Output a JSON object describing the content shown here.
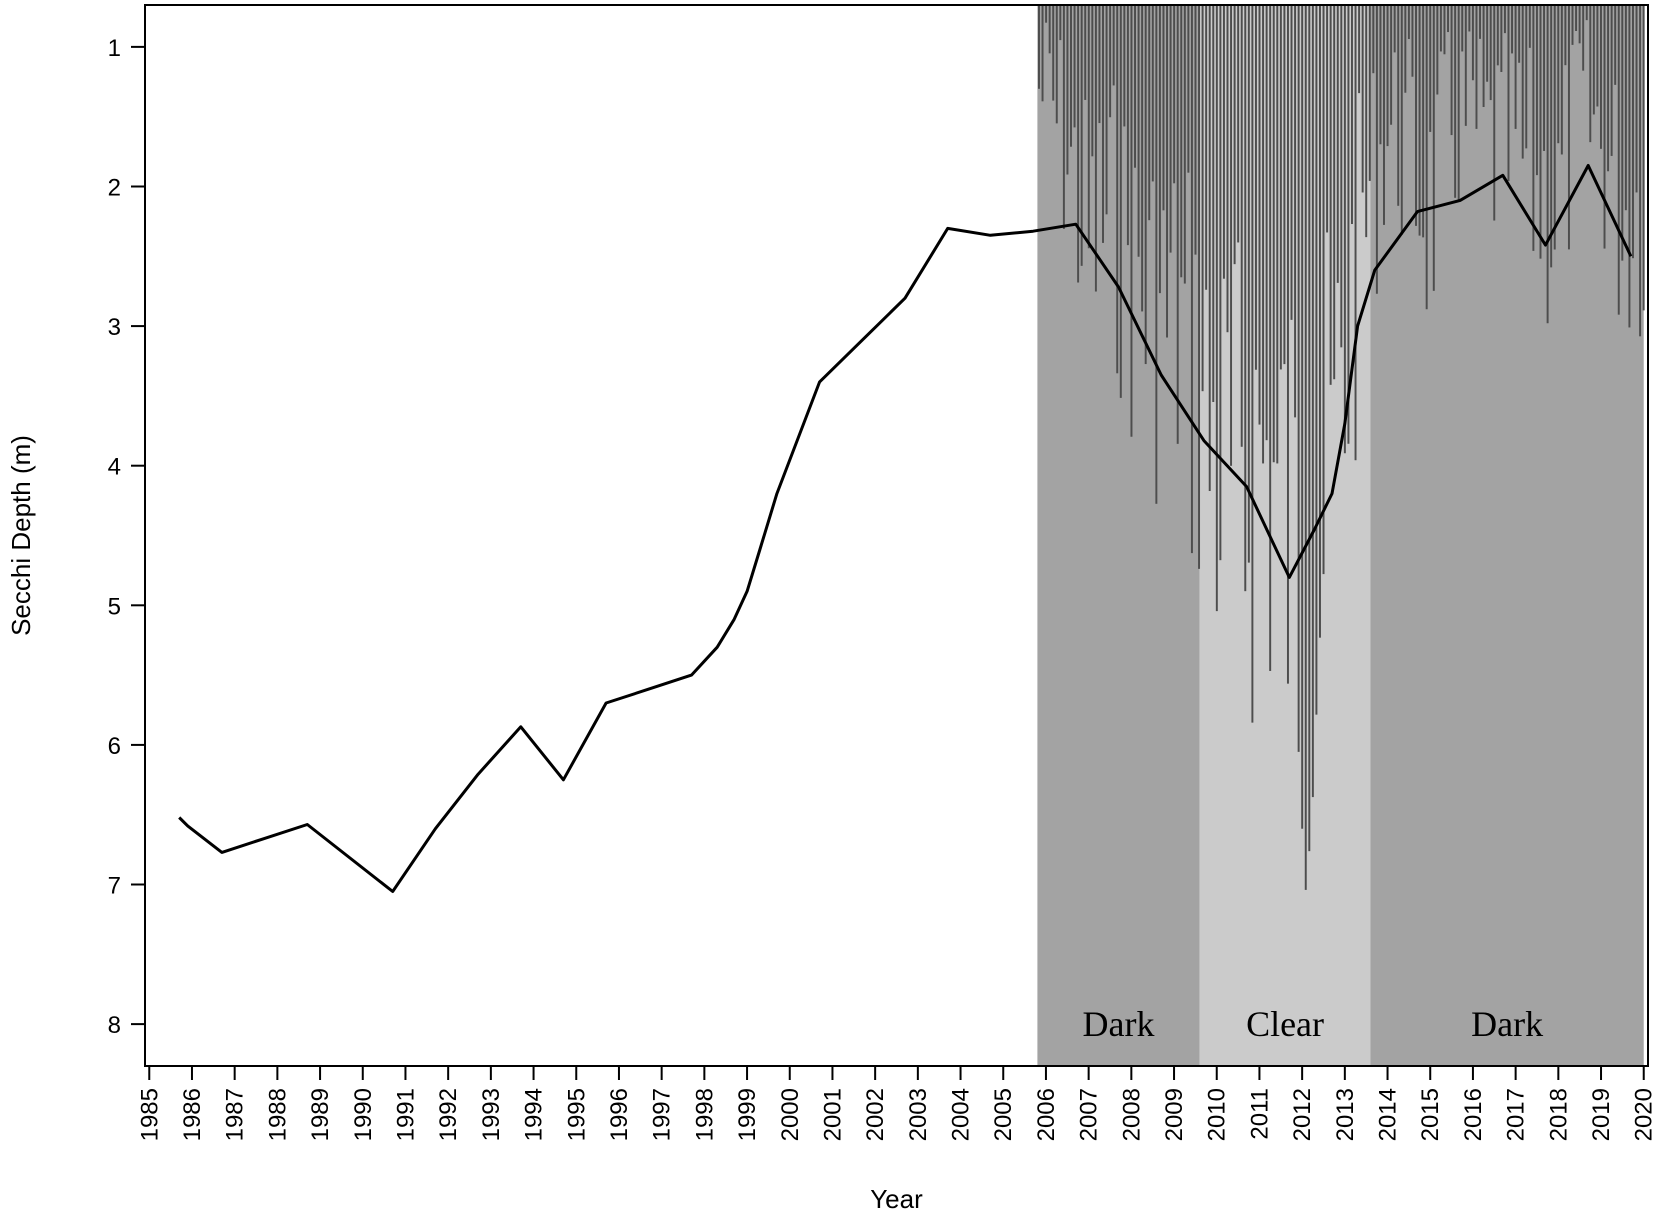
{
  "chart_data": {
    "type": "line",
    "title": "",
    "xlabel": "Year",
    "ylabel": "Secchi Depth (m)",
    "y_inverted": true,
    "xlim": [
      1984.9,
      2020.1
    ],
    "ylim": [
      0.7,
      8.3
    ],
    "grid": false,
    "x_ticks": [
      1985,
      1986,
      1987,
      1988,
      1989,
      1990,
      1991,
      1992,
      1993,
      1994,
      1995,
      1996,
      1997,
      1998,
      1999,
      2000,
      2001,
      2002,
      2003,
      2004,
      2005,
      2006,
      2007,
      2008,
      2009,
      2010,
      2011,
      2012,
      2013,
      2014,
      2015,
      2016,
      2017,
      2018,
      2019,
      2020
    ],
    "y_ticks": [
      1,
      2,
      3,
      4,
      5,
      6,
      7,
      8
    ],
    "regions": [
      {
        "label": "Dark",
        "x_start": 2005.8,
        "x_end": 2009.6,
        "color": "#a3a3a3"
      },
      {
        "label": "Clear",
        "x_start": 2009.6,
        "x_end": 2013.6,
        "color": "#cbcbcb"
      },
      {
        "label": "Dark",
        "x_start": 2013.6,
        "x_end": 2020.0,
        "color": "#a3a3a3"
      }
    ],
    "series": [
      {
        "x": [
          1985.7,
          1985.9,
          1986.7,
          1987.7,
          1988.7,
          1990.7,
          1991.7,
          1992.7,
          1993.7,
          1994.7,
          1995.7,
          1996.7,
          1997.7,
          1998.3,
          1998.7,
          1999.0,
          1999.3,
          1999.7,
          2000.7,
          2001.7,
          2002.7,
          2003.7,
          2004.7,
          2005.7,
          2006.7,
          2007.7,
          2008.7,
          2009.7,
          2010.7,
          2011.7,
          2012.3,
          2012.7,
          2013.0,
          2013.3,
          2013.7,
          2014.7,
          2015.7,
          2016.7,
          2017.7,
          2018.7,
          2019.7
        ],
        "y": [
          6.52,
          6.58,
          6.77,
          6.67,
          6.57,
          7.05,
          6.6,
          6.21,
          5.87,
          6.25,
          5.7,
          5.6,
          5.5,
          5.3,
          5.1,
          4.9,
          4.6,
          4.2,
          3.4,
          3.1,
          2.8,
          2.3,
          2.35,
          2.32,
          2.27,
          2.72,
          3.35,
          3.82,
          4.15,
          4.8,
          4.45,
          4.2,
          3.7,
          3.0,
          2.6,
          2.18,
          2.1,
          1.92,
          2.42,
          1.85,
          2.5
        ]
      }
    ],
    "bars": {
      "description_values": "monthly observations drawn as dark vertical bars hanging from top of plot",
      "color": "#4d4d4d",
      "x_start": 2005.8,
      "x_end": 2020.0,
      "step": 0.0833,
      "anchor_y": [
        2006.0,
        2006.5,
        2007.0,
        2007.5,
        2008.0,
        2008.5,
        2009.0,
        2009.5,
        2010.0,
        2010.5,
        2011.0,
        2011.5,
        2012.0,
        2012.5,
        2013.0,
        2013.5,
        2014.0,
        2014.5,
        2015.0,
        2015.5,
        2016.0,
        2016.5,
        2017.0,
        2017.5,
        2018.0,
        2018.5,
        2019.0,
        2019.5,
        2020.0
      ],
      "anchor_depth": [
        1.5,
        2.0,
        2.8,
        2.5,
        3.0,
        3.3,
        3.4,
        3.8,
        4.6,
        4.9,
        4.5,
        4.9,
        5.6,
        5.2,
        3.8,
        2.5,
        1.8,
        2.0,
        2.5,
        1.8,
        1.8,
        2.0,
        2.0,
        2.3,
        2.5,
        1.6,
        1.9,
        2.5,
        2.4
      ]
    }
  }
}
